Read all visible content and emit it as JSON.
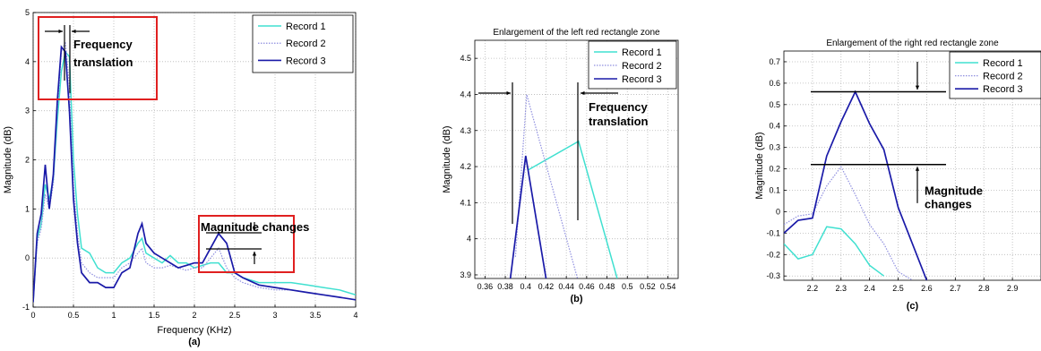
{
  "colors": {
    "record1": "#40e0d0",
    "record2": "#8f8fdf",
    "record3": "#1a1aa8",
    "red_box": "#e02020",
    "grid": "#b8b8b8"
  },
  "chart_data": [
    {
      "type": "line",
      "panel_label": "(a)",
      "title": "",
      "xlabel": "Frequency (KHz)",
      "ylabel": "Magnitude (dB)",
      "xlim": [
        0,
        4
      ],
      "ylim": [
        -1,
        5
      ],
      "xticks": [
        0,
        0.5,
        1,
        1.5,
        2,
        2.5,
        3,
        3.5,
        4
      ],
      "xtick_labels": [
        "0",
        "0.5",
        "1",
        "1.5",
        "2",
        "2.5",
        "3",
        "3.5",
        "4"
      ],
      "yticks": [
        -1,
        0,
        1,
        2,
        3,
        4,
        5
      ],
      "ytick_labels": [
        "-1",
        "0",
        "1",
        "2",
        "3",
        "4",
        "5"
      ],
      "grid": true,
      "legend_position": "top-right",
      "series": [
        {
          "name": "Record 1",
          "style": "solid",
          "x": [
            0,
            0.05,
            0.1,
            0.15,
            0.2,
            0.25,
            0.3,
            0.35,
            0.4,
            0.45,
            0.5,
            0.55,
            0.6,
            0.7,
            0.8,
            0.9,
            1.0,
            1.1,
            1.2,
            1.3,
            1.35,
            1.4,
            1.5,
            1.6,
            1.7,
            1.8,
            1.9,
            2.0,
            2.1,
            2.2,
            2.3,
            2.4,
            2.5,
            2.6,
            2.8,
            3.0,
            3.2,
            3.4,
            3.6,
            3.8,
            4.0
          ],
          "y": [
            -0.9,
            0.4,
            0.7,
            1.5,
            1.2,
            1.6,
            2.8,
            3.8,
            4.2,
            4.1,
            2.0,
            0.9,
            0.2,
            0.1,
            -0.2,
            -0.3,
            -0.3,
            -0.1,
            0.0,
            0.3,
            0.4,
            0.1,
            0.0,
            -0.1,
            0.05,
            -0.1,
            -0.1,
            -0.2,
            -0.15,
            -0.1,
            -0.1,
            -0.3,
            -0.3,
            -0.4,
            -0.5,
            -0.5,
            -0.5,
            -0.55,
            -0.6,
            -0.65,
            -0.75
          ]
        },
        {
          "name": "Record 2",
          "style": "dotted",
          "x": [
            0,
            0.05,
            0.1,
            0.15,
            0.2,
            0.25,
            0.3,
            0.35,
            0.4,
            0.45,
            0.5,
            0.55,
            0.6,
            0.7,
            0.8,
            0.9,
            1.0,
            1.1,
            1.2,
            1.3,
            1.35,
            1.4,
            1.5,
            1.6,
            1.7,
            1.8,
            1.9,
            2.0,
            2.1,
            2.2,
            2.3,
            2.4,
            2.5,
            2.6,
            2.8,
            3.0,
            3.2,
            3.4,
            3.6,
            3.8,
            4.0
          ],
          "y": [
            -0.9,
            0.3,
            0.6,
            1.3,
            1.0,
            1.5,
            3.0,
            4.2,
            4.4,
            3.5,
            1.5,
            0.5,
            -0.1,
            -0.3,
            -0.4,
            -0.4,
            -0.4,
            -0.2,
            -0.1,
            0.1,
            0.2,
            -0.1,
            -0.2,
            -0.2,
            -0.15,
            -0.2,
            -0.25,
            -0.2,
            -0.2,
            0.0,
            0.2,
            -0.2,
            -0.4,
            -0.5,
            -0.6,
            -0.65,
            -0.65,
            -0.7,
            -0.75,
            -0.8,
            -0.85
          ]
        },
        {
          "name": "Record 3",
          "style": "solid",
          "x": [
            0,
            0.05,
            0.1,
            0.15,
            0.2,
            0.25,
            0.3,
            0.35,
            0.4,
            0.45,
            0.5,
            0.55,
            0.6,
            0.7,
            0.8,
            0.9,
            1.0,
            1.1,
            1.2,
            1.3,
            1.35,
            1.4,
            1.5,
            1.6,
            1.7,
            1.8,
            1.9,
            2.0,
            2.1,
            2.2,
            2.3,
            2.4,
            2.5,
            2.6,
            2.8,
            3.0,
            3.2,
            3.4,
            3.6,
            3.8,
            4.0
          ],
          "y": [
            -0.9,
            0.5,
            0.9,
            1.9,
            1.0,
            1.7,
            3.2,
            4.3,
            4.2,
            3.0,
            1.2,
            0.3,
            -0.3,
            -0.5,
            -0.5,
            -0.6,
            -0.6,
            -0.3,
            -0.2,
            0.5,
            0.7,
            0.3,
            0.1,
            0.0,
            -0.1,
            -0.2,
            -0.15,
            -0.1,
            -0.1,
            0.2,
            0.5,
            0.3,
            -0.3,
            -0.4,
            -0.55,
            -0.6,
            -0.65,
            -0.7,
            -0.75,
            -0.8,
            -0.85
          ]
        }
      ],
      "annotations": {
        "freq_label": [
          "Frequency",
          "translation"
        ],
        "mag_label": "Magnitude changes"
      }
    },
    {
      "type": "line",
      "panel_label": "(b)",
      "title": "Enlargement of the left red rectangle zone",
      "xlabel": "",
      "ylabel": "Magnitude (dB)",
      "xlim": [
        0.35,
        0.55
      ],
      "ylim": [
        3.89,
        4.55
      ],
      "xticks": [
        0.36,
        0.38,
        0.4,
        0.42,
        0.44,
        0.46,
        0.48,
        0.5,
        0.52,
        0.54
      ],
      "xtick_labels": [
        "0.36",
        "0.38",
        "0.4",
        "0.42",
        "0.44",
        "0.46",
        "0.48",
        "0.5",
        "0.52",
        "0.54"
      ],
      "yticks": [
        3.9,
        4.0,
        4.1,
        4.2,
        4.3,
        4.4,
        4.5
      ],
      "ytick_labels": [
        "3.9",
        "4",
        "4.1",
        "4.2",
        "4.3",
        "4.4",
        "4.5"
      ],
      "grid": true,
      "legend_position": "top-right",
      "series": [
        {
          "name": "Record 1",
          "style": "solid",
          "x": [
            0.402,
            0.452,
            0.49
          ],
          "y": [
            4.19,
            4.27,
            3.89
          ]
        },
        {
          "name": "Record 2",
          "style": "dotted",
          "x": [
            0.39,
            0.401,
            0.451
          ],
          "y": [
            3.95,
            4.4,
            3.89
          ]
        },
        {
          "name": "Record 3",
          "style": "solid",
          "x": [
            0.385,
            0.4,
            0.42
          ],
          "y": [
            3.89,
            4.23,
            3.89
          ]
        }
      ],
      "annotations": {
        "freq_label": [
          "Frequency",
          "translation"
        ]
      }
    },
    {
      "type": "line",
      "panel_label": "(c)",
      "title": "Enlargement of the right red rectangle zone",
      "xlabel": "",
      "ylabel": "Magnitude (dB)",
      "xlim": [
        2.1,
        3.0
      ],
      "ylim": [
        -0.32,
        0.75
      ],
      "xticks": [
        2.2,
        2.3,
        2.4,
        2.5,
        2.6,
        2.7,
        2.8,
        2.9
      ],
      "xtick_labels": [
        "2.2",
        "2.3",
        "2.4",
        "2.5",
        "2.6",
        "2.7",
        "2.8",
        "2.9"
      ],
      "yticks": [
        -0.3,
        -0.2,
        -0.1,
        0,
        0.1,
        0.2,
        0.3,
        0.4,
        0.5,
        0.6,
        0.7
      ],
      "ytick_labels": [
        "-0.3",
        "-0.2",
        "-0.1",
        "0",
        "0.1",
        "0.2",
        "0.3",
        "0.4",
        "0.5",
        "0.6",
        "0.7"
      ],
      "grid": true,
      "legend_position": "top-right",
      "series": [
        {
          "name": "Record 1",
          "style": "solid",
          "x": [
            2.1,
            2.15,
            2.2,
            2.25,
            2.3,
            2.35,
            2.4,
            2.45
          ],
          "y": [
            -0.15,
            -0.22,
            -0.2,
            -0.07,
            -0.08,
            -0.15,
            -0.25,
            -0.3
          ]
        },
        {
          "name": "Record 2",
          "style": "dotted",
          "x": [
            2.1,
            2.15,
            2.2,
            2.25,
            2.3,
            2.35,
            2.4,
            2.45,
            2.5,
            2.55
          ],
          "y": [
            -0.06,
            -0.02,
            -0.01,
            0.12,
            0.21,
            0.08,
            -0.06,
            -0.15,
            -0.28,
            -0.32
          ]
        },
        {
          "name": "Record 3",
          "style": "solid",
          "x": [
            2.1,
            2.15,
            2.2,
            2.25,
            2.3,
            2.35,
            2.4,
            2.45,
            2.5,
            2.6
          ],
          "y": [
            -0.1,
            -0.04,
            -0.03,
            0.26,
            0.42,
            0.56,
            0.41,
            0.29,
            0.02,
            -0.32
          ]
        }
      ],
      "annotations": {
        "mag_label": [
          "Magnitude",
          "changes"
        ]
      }
    }
  ]
}
